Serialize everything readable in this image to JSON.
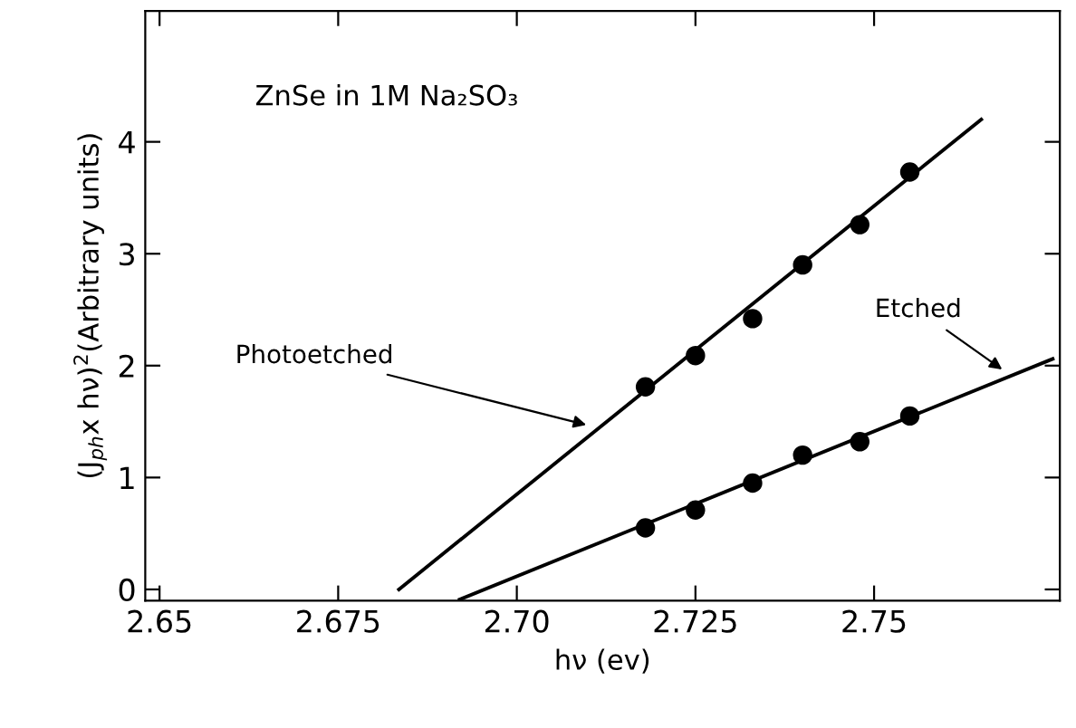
{
  "chart_data": {
    "type": "scatter",
    "xlabel": "hν (ev)",
    "ylabel": "(J$_{ph}$x hν)$^{2}$(Arbitrary units)",
    "xlim": [
      2.648,
      2.776
    ],
    "ylim": [
      -0.1,
      5.17
    ],
    "xticks": [
      2.65,
      2.675,
      {
        "value": 2.7,
        "label": "2.70"
      },
      2.725,
      2.75
    ],
    "yticks": [
      0,
      1,
      2,
      3,
      4
    ],
    "grid": false,
    "legend": false,
    "marker": "circle",
    "series": [
      {
        "color": "#000000",
        "x": [
          2.718,
          2.725,
          2.733,
          2.74,
          2.748,
          2.755
        ],
        "values": [
          1.81,
          2.09,
          2.42,
          2.9,
          3.26,
          3.73
        ]
      },
      {
        "color": "#000000",
        "x": [
          2.718,
          2.725,
          2.733,
          2.74,
          2.748,
          2.755
        ],
        "values": [
          0.55,
          0.71,
          0.95,
          1.2,
          1.32,
          1.55
        ]
      },
      {
        "type": "line",
        "color": "#000000",
        "line_style": "solid",
        "marker": "none",
        "x": [
          2.6835,
          2.765
        ],
        "values": [
          0.0,
          4.2
        ]
      },
      {
        "type": "line",
        "color": "#000000",
        "line_style": "solid",
        "marker": "none",
        "x": [
          2.692,
          2.775
        ],
        "values": [
          -0.09,
          2.06
        ]
      }
    ],
    "annotations": [
      "ZnSe in 1M Na₂SO₃",
      {
        "text": "Photoetched",
        "x": 2.7104,
        "y": 1.46
      },
      {
        "text": "Etched",
        "x": 2.7685,
        "y": 1.94
      }
    ]
  }
}
